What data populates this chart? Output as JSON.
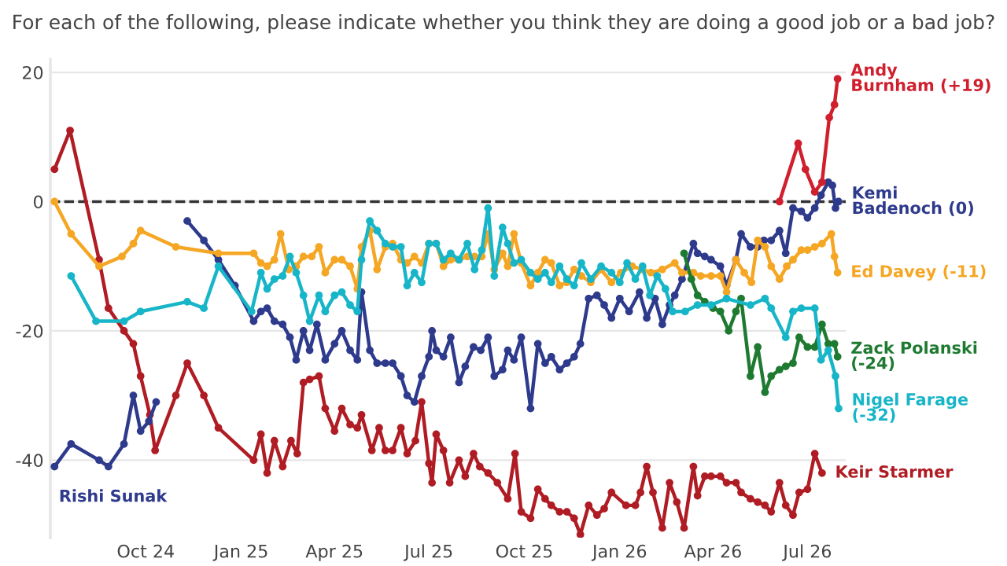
{
  "chart_data": {
    "type": "line",
    "title": "For each of the following, please indicate whether you think they are doing a good job or a bad job?",
    "xlim": [
      "2024-07-01",
      "2026-08-07"
    ],
    "ylim": [
      -52,
      22
    ],
    "yticks": [
      -40,
      -20,
      0,
      20
    ],
    "xticks": [
      {
        "value": "2024-10-01",
        "label": "Oct 24"
      },
      {
        "value": "2025-01-01",
        "label": "Jan 25"
      },
      {
        "value": "2025-04-01",
        "label": "Apr 25"
      },
      {
        "value": "2025-07-01",
        "label": "Jul 25"
      },
      {
        "value": "2025-10-01",
        "label": "Oct 25"
      },
      {
        "value": "2026-01-01",
        "label": "Jan 26"
      },
      {
        "value": "2026-04-01",
        "label": "Apr 26"
      },
      {
        "value": "2026-07-01",
        "label": "Jul 26"
      }
    ],
    "grid": "y",
    "legend": false,
    "marker": "circle",
    "line_style": "solid",
    "ref_lines": [
      {
        "axis": "y",
        "value": 0,
        "color": "#333333",
        "line_style": "dashed"
      }
    ],
    "series": [
      {
        "name": "Keir Starmer",
        "color": "#b01c24",
        "x": [
          "2024-07-05",
          "2024-07-20",
          "2024-08-17",
          "2024-08-26",
          "2024-09-10",
          "2024-09-19",
          "2024-09-26",
          "2024-10-05",
          "2024-10-10",
          "2024-10-30",
          "2024-11-10",
          "2024-11-26",
          "2024-12-10",
          "2025-01-13",
          "2025-01-20",
          "2025-01-26",
          "2025-02-02",
          "2025-02-10",
          "2025-02-18",
          "2025-02-24",
          "2025-03-02",
          "2025-03-08",
          "2025-03-17",
          "2025-03-23",
          "2025-04-01",
          "2025-04-08",
          "2025-04-16",
          "2025-04-23",
          "2025-04-27",
          "2025-05-07",
          "2025-05-14",
          "2025-05-20",
          "2025-05-27",
          "2025-06-04",
          "2025-06-10",
          "2025-06-18",
          "2025-06-24",
          "2025-07-01",
          "2025-07-04",
          "2025-07-08",
          "2025-07-15",
          "2025-07-21",
          "2025-07-30",
          "2025-08-05",
          "2025-08-13",
          "2025-08-19",
          "2025-08-27",
          "2025-09-05",
          "2025-09-15",
          "2025-09-22",
          "2025-09-28",
          "2025-10-07",
          "2025-10-14",
          "2025-10-21",
          "2025-10-27",
          "2025-11-04",
          "2025-11-11",
          "2025-11-18",
          "2025-11-24",
          "2025-12-02",
          "2025-12-10",
          "2025-12-17",
          "2025-12-24",
          "2026-01-07",
          "2026-01-16",
          "2026-01-21",
          "2026-01-27",
          "2026-02-02",
          "2026-02-11",
          "2026-02-18",
          "2026-02-25",
          "2026-03-04",
          "2026-03-13",
          "2026-03-17",
          "2026-03-24",
          "2026-03-30",
          "2026-04-08",
          "2026-04-14",
          "2026-04-23",
          "2026-04-28",
          "2026-05-07",
          "2026-05-14",
          "2026-05-21",
          "2026-05-27",
          "2026-06-04",
          "2026-06-10",
          "2026-06-17",
          "2026-06-23",
          "2026-07-01",
          "2026-07-08",
          "2026-07-15"
        ],
        "values": [
          5,
          11,
          -9,
          -16.5,
          -20,
          -22,
          -27,
          -33,
          -38.5,
          -30,
          -25,
          -30,
          -35,
          -40,
          -36,
          -42,
          -37,
          -41,
          -37,
          -39,
          -28,
          -27.5,
          -27,
          -32,
          -35.5,
          -32,
          -34.5,
          -35,
          -33,
          -38.5,
          -35,
          -38.5,
          -38.5,
          -35,
          -39,
          -37,
          -31,
          -40.5,
          -43.5,
          -36,
          -38.5,
          -43.5,
          -40,
          -42.5,
          -39,
          -41,
          -42,
          -43.5,
          -46,
          -39,
          -48,
          -49,
          -44.5,
          -46,
          -47,
          -48,
          -48,
          -49,
          -51.5,
          -47,
          -48.5,
          -47.5,
          -45,
          -47,
          -47,
          -45,
          -41,
          -45,
          -50.5,
          -43.5,
          -46.5,
          -50.5,
          -41,
          -45.5,
          -42.5,
          -42.5,
          -42.5,
          -43.5,
          -43.5,
          -45,
          -46,
          -46.5,
          -47,
          -48,
          -43.5,
          -47,
          -48.5,
          -45,
          -44.5,
          -39,
          -42
        ]
      },
      {
        "name": "Rishi Sunak",
        "color": "#2e3a8c",
        "x": [
          "2024-07-05",
          "2024-07-21",
          "2024-08-17",
          "2024-08-26",
          "2024-09-10",
          "2024-09-19",
          "2024-09-26",
          "2024-10-04",
          "2024-10-11"
        ],
        "values": [
          -41,
          -37.5,
          -40,
          -41,
          -37.5,
          -30,
          -35.5,
          -34,
          -31
        ]
      },
      {
        "name": "Kemi\nBadenoch (0)",
        "color": "#2e3a8c",
        "x": [
          "2024-11-10",
          "2024-11-26",
          "2024-12-10",
          "2024-12-26",
          "2025-01-13",
          "2025-01-20",
          "2025-01-26",
          "2025-02-02",
          "2025-02-10",
          "2025-02-17",
          "2025-02-23",
          "2025-03-02",
          "2025-03-08",
          "2025-03-15",
          "2025-03-23",
          "2025-04-01",
          "2025-04-08",
          "2025-04-16",
          "2025-04-23",
          "2025-04-27",
          "2025-05-05",
          "2025-05-12",
          "2025-05-20",
          "2025-05-27",
          "2025-06-04",
          "2025-06-10",
          "2025-06-17",
          "2025-06-24",
          "2025-07-01",
          "2025-07-04",
          "2025-07-08",
          "2025-07-15",
          "2025-07-22",
          "2025-07-30",
          "2025-08-05",
          "2025-08-13",
          "2025-08-20",
          "2025-08-27",
          "2025-09-02",
          "2025-09-10",
          "2025-09-15",
          "2025-09-21",
          "2025-09-28",
          "2025-10-07",
          "2025-10-14",
          "2025-10-21",
          "2025-10-27",
          "2025-11-04",
          "2025-11-11",
          "2025-11-18",
          "2025-11-24",
          "2025-12-02",
          "2025-12-10",
          "2025-12-17",
          "2025-12-24",
          "2026-01-01",
          "2026-01-10",
          "2026-01-20",
          "2026-01-27",
          "2026-02-04",
          "2026-02-11",
          "2026-02-18",
          "2026-02-23",
          "2026-03-02",
          "2026-03-13",
          "2026-03-17",
          "2026-03-24",
          "2026-03-30",
          "2026-04-08",
          "2026-04-14",
          "2026-04-23",
          "2026-04-28",
          "2026-05-07",
          "2026-05-14",
          "2026-05-20",
          "2026-05-27",
          "2026-06-04",
          "2026-06-10",
          "2026-06-17",
          "2026-06-25",
          "2026-07-01",
          "2026-07-08",
          "2026-07-14",
          "2026-07-21",
          "2026-07-25",
          "2026-07-28",
          "2026-07-31"
        ],
        "values": [
          -3,
          -6,
          -9,
          -13,
          -18.5,
          -17,
          -16.5,
          -18.5,
          -19,
          -21,
          -24.5,
          -20,
          -23,
          -19,
          -24.5,
          -22,
          -20,
          -23,
          -24.5,
          -14,
          -23,
          -25,
          -25,
          -25,
          -27,
          -30,
          -31,
          -27,
          -24,
          -20,
          -23,
          -24,
          -21,
          -28,
          -25.5,
          -22.5,
          -23,
          -21,
          -27,
          -26,
          -23,
          -24.5,
          -21,
          -32,
          -22,
          -25,
          -24,
          -26,
          -25,
          -24,
          -22,
          -15,
          -14.5,
          -16,
          -18,
          -15,
          -17,
          -14,
          -18,
          -15,
          -19,
          -16,
          -14.5,
          -12,
          -6.5,
          -8,
          -8.5,
          -9,
          -10,
          -13,
          -9,
          -5,
          -7,
          -7,
          -6,
          -6,
          -4.5,
          -8,
          -1,
          -1.5,
          -2.5,
          -1,
          1,
          3,
          2.5,
          -1,
          0
        ]
      },
      {
        "name": "Ed Davey (-11)",
        "color": "#f5a623",
        "x": [
          "2024-07-05",
          "2024-07-21",
          "2024-08-17",
          "2024-09-08",
          "2024-09-19",
          "2024-09-26",
          "2024-10-30",
          "2024-12-10",
          "2025-01-13",
          "2025-01-20",
          "2025-01-26",
          "2025-02-02",
          "2025-02-08",
          "2025-02-16",
          "2025-02-23",
          "2025-03-02",
          "2025-03-10",
          "2025-03-17",
          "2025-03-23",
          "2025-04-01",
          "2025-04-08",
          "2025-04-16",
          "2025-04-23",
          "2025-04-27",
          "2025-05-05",
          "2025-05-12",
          "2025-05-20",
          "2025-05-27",
          "2025-06-04",
          "2025-06-10",
          "2025-06-17",
          "2025-06-24",
          "2025-07-01",
          "2025-07-08",
          "2025-07-15",
          "2025-07-22",
          "2025-07-30",
          "2025-08-07",
          "2025-08-14",
          "2025-08-21",
          "2025-08-27",
          "2025-09-02",
          "2025-09-10",
          "2025-09-15",
          "2025-09-21",
          "2025-09-28",
          "2025-10-07",
          "2025-10-14",
          "2025-10-21",
          "2025-10-27",
          "2025-11-04",
          "2025-11-11",
          "2025-11-18",
          "2025-11-25",
          "2025-12-04",
          "2025-12-14",
          "2025-12-24",
          "2026-01-02",
          "2026-01-13",
          "2026-01-23",
          "2026-01-31",
          "2026-02-11",
          "2026-02-23",
          "2026-03-02",
          "2026-03-13",
          "2026-03-20",
          "2026-03-30",
          "2026-04-08",
          "2026-04-14",
          "2026-04-23",
          "2026-05-01",
          "2026-05-08",
          "2026-05-14",
          "2026-05-21",
          "2026-05-27",
          "2026-06-04",
          "2026-06-11",
          "2026-06-17",
          "2026-06-25",
          "2026-07-01",
          "2026-07-08",
          "2026-07-15",
          "2026-07-24",
          "2026-07-27",
          "2026-07-30"
        ],
        "values": [
          0,
          -5,
          -10,
          -8.5,
          -6.5,
          -4.5,
          -7,
          -8,
          -8,
          -9.5,
          -10,
          -9,
          -5,
          -10.5,
          -10,
          -8.5,
          -8.5,
          -7,
          -11,
          -9,
          -9,
          -10,
          -13.5,
          -7,
          -4.5,
          -10.5,
          -7,
          -6.5,
          -9,
          -9.5,
          -8.5,
          -9.5,
          -6.5,
          -6.5,
          -10,
          -9,
          -9,
          -8.5,
          -8.5,
          -8.5,
          -5,
          -10.5,
          -8,
          -10,
          -5,
          -9.5,
          -13,
          -11,
          -9,
          -9.5,
          -13,
          -12.5,
          -10.5,
          -11.5,
          -12.5,
          -10.5,
          -12.5,
          -11,
          -10,
          -10.5,
          -11,
          -10.5,
          -9.5,
          -11,
          -11,
          -11.5,
          -11.5,
          -11.5,
          -14,
          -9,
          -11,
          -12.5,
          -6,
          -7,
          -10,
          -12,
          -10,
          -9,
          -7.5,
          -7.5,
          -7,
          -6.5,
          -5,
          -8.5,
          -11
        ]
      },
      {
        "name": "Zack Polanski\n(-24)",
        "color": "#1f7a31",
        "x": [
          "2026-03-04",
          "2026-03-11",
          "2026-03-17",
          "2026-03-24",
          "2026-04-01",
          "2026-04-08",
          "2026-04-16",
          "2026-04-23",
          "2026-04-28",
          "2026-05-07",
          "2026-05-14",
          "2026-05-21",
          "2026-05-27",
          "2026-06-04",
          "2026-06-10",
          "2026-06-17",
          "2026-06-23",
          "2026-07-01",
          "2026-07-08",
          "2026-07-15",
          "2026-07-21",
          "2026-07-27",
          "2026-07-30"
        ],
        "values": [
          -8,
          -12,
          -14.5,
          -15.5,
          -16.5,
          -17,
          -20,
          -17,
          -15,
          -27,
          -22.5,
          -29.5,
          -27,
          -26,
          -25.5,
          -25,
          -21,
          -22.5,
          -22.5,
          -19,
          -22,
          -22,
          -24
        ]
      },
      {
        "name": "Nigel Farage\n(-32)",
        "color": "#17b5c8",
        "x": [
          "2024-07-21",
          "2024-08-14",
          "2024-09-10",
          "2024-09-26",
          "2024-11-10",
          "2024-11-26",
          "2024-12-10",
          "2025-01-11",
          "2025-01-20",
          "2025-01-26",
          "2025-02-02",
          "2025-02-10",
          "2025-02-17",
          "2025-02-23",
          "2025-03-02",
          "2025-03-08",
          "2025-03-17",
          "2025-03-23",
          "2025-04-01",
          "2025-04-08",
          "2025-04-16",
          "2025-04-23",
          "2025-04-27",
          "2025-05-05",
          "2025-05-12",
          "2025-05-20",
          "2025-05-27",
          "2025-06-04",
          "2025-06-10",
          "2025-06-17",
          "2025-06-24",
          "2025-07-01",
          "2025-07-08",
          "2025-07-15",
          "2025-07-22",
          "2025-07-30",
          "2025-08-07",
          "2025-08-14",
          "2025-08-21",
          "2025-08-27",
          "2025-09-02",
          "2025-09-10",
          "2025-09-15",
          "2025-09-21",
          "2025-09-28",
          "2025-10-07",
          "2025-10-14",
          "2025-10-21",
          "2025-10-27",
          "2025-11-04",
          "2025-11-11",
          "2025-11-18",
          "2025-11-25",
          "2025-12-04",
          "2025-12-14",
          "2025-12-24",
          "2026-01-01",
          "2026-01-08",
          "2026-01-16",
          "2026-01-23",
          "2026-01-30",
          "2026-02-06",
          "2026-02-14",
          "2026-02-21",
          "2026-03-05",
          "2026-03-17",
          "2026-03-30",
          "2026-04-14",
          "2026-05-07",
          "2026-05-21",
          "2026-05-27",
          "2026-06-10",
          "2026-06-17",
          "2026-06-25",
          "2026-07-08",
          "2026-07-14",
          "2026-07-21",
          "2026-07-28",
          "2026-07-31"
        ],
        "values": [
          -11.5,
          -18.5,
          -18.5,
          -17,
          -15.5,
          -16.5,
          -10,
          -17,
          -11,
          -13.5,
          -12,
          -11.5,
          -8.5,
          -11,
          -14.5,
          -18.5,
          -14.5,
          -17,
          -14.5,
          -14,
          -16,
          -17,
          -9,
          -3,
          -4.5,
          -6.5,
          -7,
          -7,
          -13,
          -11,
          -12.5,
          -6.5,
          -6.5,
          -9,
          -8,
          -9,
          -6.5,
          -10.5,
          -7.5,
          -1,
          -11.5,
          -4,
          -6.5,
          -9.5,
          -9,
          -11,
          -12,
          -11,
          -12.5,
          -10,
          -12,
          -13,
          -9.5,
          -12,
          -10,
          -11,
          -12.5,
          -9.5,
          -12,
          -10,
          -14.5,
          -11.5,
          -13.5,
          -17,
          -17,
          -16,
          -16,
          -15,
          -16,
          -15,
          -16.5,
          -21,
          -17,
          -16.5,
          -16.5,
          -24.5,
          -23,
          -27,
          -32
        ]
      },
      {
        "name": "Andy\nBurnham (+19)",
        "color": "#d0202e",
        "x": [
          "2026-06-04",
          "2026-06-22",
          "2026-06-29",
          "2026-07-08",
          "2026-07-15",
          "2026-07-22",
          "2026-07-27",
          "2026-07-30"
        ],
        "values": [
          0,
          9,
          5,
          1.5,
          3,
          13,
          15,
          19
        ]
      }
    ]
  }
}
